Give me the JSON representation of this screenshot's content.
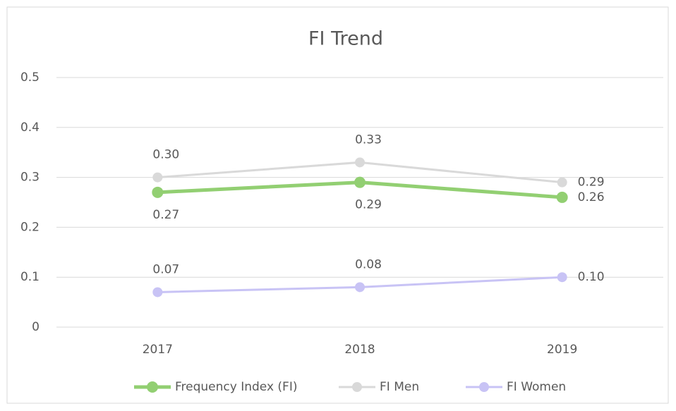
{
  "chart_data": {
    "type": "line",
    "title": "FI Trend",
    "categories": [
      "2017",
      "2018",
      "2019"
    ],
    "series": [
      {
        "name": "Frequency Index (FI)",
        "color": "#92cf72",
        "values": [
          0.27,
          0.29,
          0.26
        ],
        "value_labels": [
          "0.27",
          "0.29",
          "0.26"
        ]
      },
      {
        "name": "FI Men",
        "color": "#d9d9d9",
        "values": [
          0.3,
          0.33,
          0.29
        ],
        "value_labels": [
          "0.30",
          "0.33",
          "0.29"
        ]
      },
      {
        "name": "FI Women",
        "color": "#c8c3f5",
        "values": [
          0.07,
          0.08,
          0.1
        ],
        "value_labels": [
          "0.07",
          "0.08",
          "0.10"
        ]
      }
    ],
    "ylim": [
      0,
      0.5
    ],
    "yticks": [
      0,
      0.1,
      0.2,
      0.3,
      0.4,
      0.5
    ],
    "grid": true,
    "legend": "bottom"
  }
}
